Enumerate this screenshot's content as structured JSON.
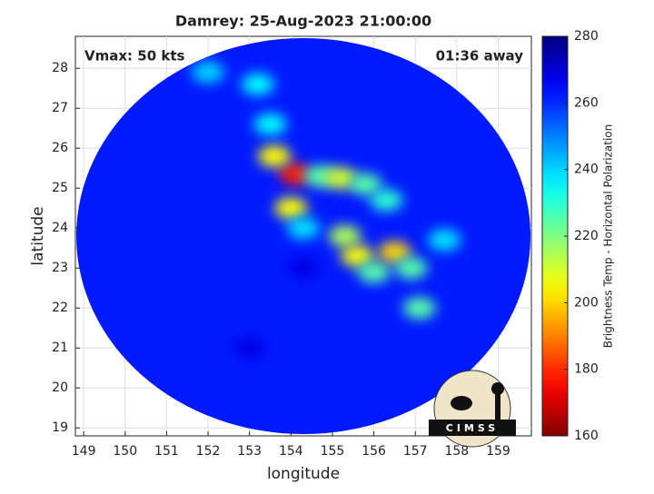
{
  "chart_data": {
    "type": "image",
    "title": "Damrey: 25-Aug-2023 21:00:00",
    "annotations": [
      "Vmax: 50 kts",
      "01:36 away"
    ],
    "xlabel": "longitude",
    "ylabel": "latitude",
    "xlim": [
      148.8,
      159.8
    ],
    "ylim": [
      18.8,
      28.8
    ],
    "xticks": [
      149,
      150,
      151,
      152,
      153,
      154,
      155,
      156,
      157,
      158,
      159
    ],
    "yticks": [
      19,
      20,
      21,
      22,
      23,
      24,
      25,
      26,
      27,
      28
    ],
    "grid": true,
    "background_value": 262,
    "x": [
      154.1,
      153.6,
      154.0,
      154.7,
      155.2,
      155.8,
      156.3,
      155.3,
      155.6,
      156.0,
      156.5,
      156.9,
      157.1,
      153.5,
      153.2,
      152.0,
      157.7,
      154.3,
      154.3,
      153.0
    ],
    "y": [
      25.35,
      25.8,
      24.5,
      25.3,
      25.25,
      25.1,
      24.7,
      23.8,
      23.3,
      22.9,
      23.4,
      23.0,
      22.0,
      26.6,
      27.6,
      27.9,
      23.7,
      24.0,
      23.0,
      21.0
    ],
    "values": [
      178,
      205,
      205,
      225,
      210,
      225,
      230,
      215,
      205,
      225,
      200,
      225,
      225,
      235,
      235,
      240,
      238,
      238,
      268,
      268
    ],
    "colorbar": {
      "label": "Brightness Temp - Horizontal Polarization",
      "clim": [
        160,
        280
      ],
      "ticks": [
        160,
        180,
        200,
        220,
        240,
        260,
        280
      ]
    }
  },
  "logo": {
    "text": "CIMSS"
  }
}
